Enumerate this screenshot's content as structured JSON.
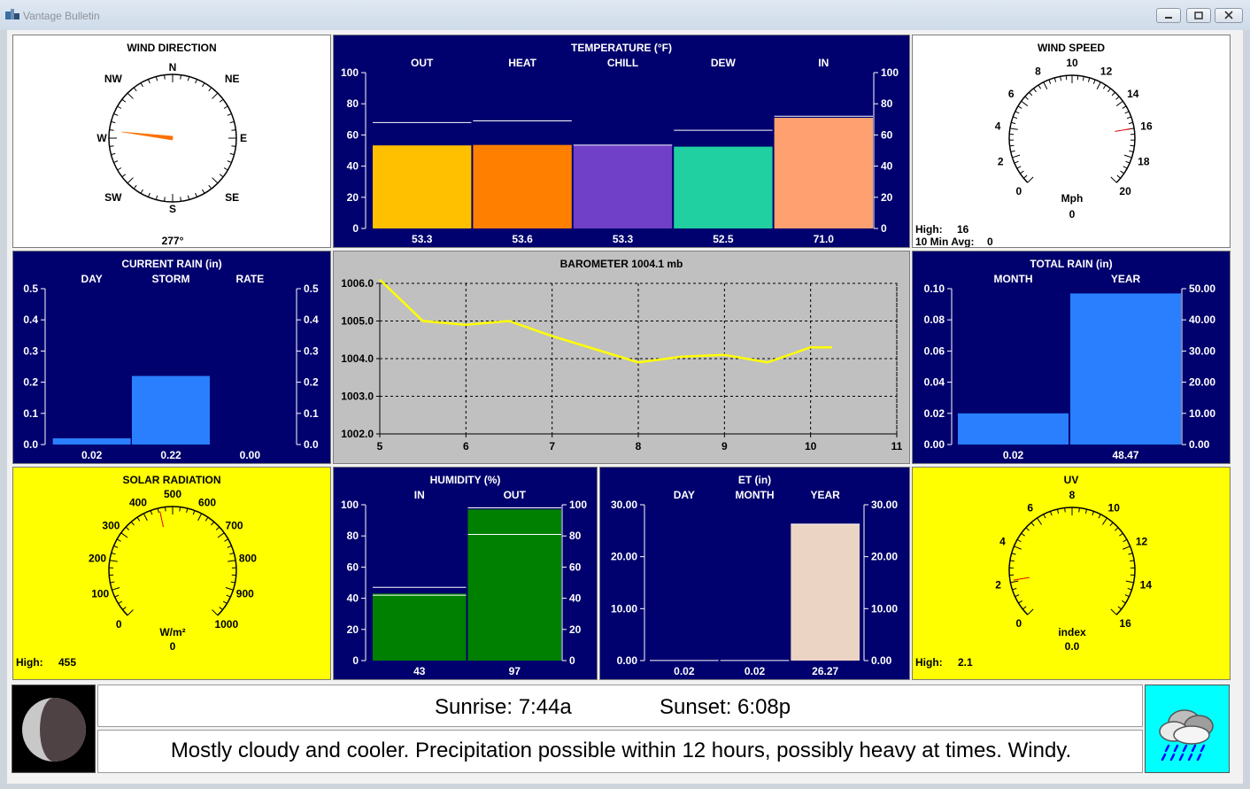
{
  "window": {
    "title": "Vantage Bulletin"
  },
  "wind_direction": {
    "title": "WIND DIRECTION",
    "compass": [
      "N",
      "NE",
      "E",
      "SE",
      "S",
      "SW",
      "W",
      "NW"
    ],
    "bearing_degrees": 277,
    "value": "277°"
  },
  "temperature": {
    "title": "TEMPERATURE  (°F)",
    "axis_ticks": [
      "100",
      "80",
      "60",
      "40",
      "20",
      "0"
    ],
    "colors": [
      "#ffc000",
      "#ff8000",
      "#7040c8",
      "#20d0a0",
      "#ffa070"
    ],
    "chart_data": {
      "type": "bar",
      "categories": [
        "OUT",
        "HEAT",
        "CHILL",
        "DEW",
        "IN"
      ],
      "values": [
        53.3,
        53.6,
        53.3,
        52.5,
        71.0
      ],
      "high_markers": [
        68,
        69,
        53.5,
        63,
        72
      ],
      "ylim": [
        0,
        100
      ]
    },
    "labels": [
      "53.3",
      "53.6",
      "53.3",
      "52.5",
      "71.0"
    ]
  },
  "wind_speed": {
    "title": "WIND SPEED",
    "ticks": [
      "0",
      "2",
      "4",
      "6",
      "8",
      "10",
      "12",
      "14",
      "16",
      "18",
      "20"
    ],
    "max": 20,
    "high": 16,
    "unit": "Mph",
    "value": "0",
    "high_label": "High:",
    "high_value": "16",
    "avg_label": "10 Min Avg:",
    "avg_value": "0"
  },
  "current_rain": {
    "title": "CURRENT RAIN  (in)",
    "axis_ticks": [
      "0.5",
      "0.4",
      "0.3",
      "0.2",
      "0.1",
      "0.0"
    ],
    "bar_color": "#2a7fff",
    "chart_data": {
      "type": "bar",
      "categories": [
        "DAY",
        "STORM",
        "RATE"
      ],
      "values": [
        0.02,
        0.22,
        0.0
      ],
      "ylim": [
        0,
        0.5
      ]
    },
    "labels": [
      "0.02",
      "0.22",
      "0.00"
    ]
  },
  "barometer": {
    "title": "BAROMETER 1004.1 mb",
    "y_ticks": [
      "1006.0",
      "1005.0",
      "1004.0",
      "1003.0",
      "1002.0"
    ],
    "x_ticks": [
      "5",
      "6",
      "7",
      "8",
      "9",
      "10",
      "11"
    ],
    "line_color": "#ffff00",
    "chart_data": {
      "type": "line",
      "x": [
        5.0,
        5.5,
        6.0,
        6.5,
        7.0,
        7.5,
        8.0,
        8.5,
        9.0,
        9.5,
        10.0,
        10.25
      ],
      "y": [
        1006.1,
        1005.0,
        1004.9,
        1005.0,
        1004.6,
        1004.25,
        1003.9,
        1004.05,
        1004.1,
        1003.9,
        1004.3,
        1004.3
      ],
      "xlim": [
        5,
        11
      ],
      "ylim": [
        1002,
        1006
      ]
    }
  },
  "total_rain": {
    "title": "TOTAL RAIN  (in)",
    "left_ticks": [
      "0.10",
      "0.08",
      "0.06",
      "0.04",
      "0.02",
      "0.00"
    ],
    "right_ticks": [
      "50.00",
      "40.00",
      "30.00",
      "20.00",
      "10.00",
      "0.00"
    ],
    "bar_color": "#2a7fff",
    "chart_data": {
      "type": "bar",
      "categories": [
        "MONTH",
        "YEAR"
      ],
      "values": [
        0.02,
        48.47
      ],
      "scales": [
        0.1,
        50.0
      ]
    },
    "labels": [
      "0.02",
      "48.47"
    ]
  },
  "solar": {
    "title": "SOLAR RADIATION",
    "ticks": [
      "0",
      "100",
      "200",
      "300",
      "400",
      "500",
      "600",
      "700",
      "800",
      "900",
      "1000"
    ],
    "max": 1000,
    "high": 455,
    "unit": "W/m²",
    "value": "0",
    "high_label": "High:",
    "high_value": "455"
  },
  "humidity": {
    "title": "HUMIDITY  (%)",
    "axis_ticks": [
      "100",
      "80",
      "60",
      "40",
      "20",
      "0"
    ],
    "bar_color": "#008000",
    "chart_data": {
      "type": "bar",
      "categories": [
        "IN",
        "OUT"
      ],
      "values": [
        43,
        97
      ],
      "high_markers": [
        47,
        98
      ],
      "low_markers": [
        42,
        81
      ],
      "ylim": [
        0,
        100
      ]
    },
    "labels": [
      "43",
      "97"
    ]
  },
  "et": {
    "title": "ET  (in)",
    "axis_ticks": [
      "30.00",
      "20.00",
      "10.00",
      "0.00"
    ],
    "bar_color": "#ecd4c4",
    "chart_data": {
      "type": "bar",
      "categories": [
        "DAY",
        "MONTH",
        "YEAR"
      ],
      "values": [
        0.02,
        0.02,
        26.27
      ],
      "ylim": [
        0,
        30
      ]
    },
    "labels": [
      "0.02",
      "0.02",
      "26.27"
    ]
  },
  "uv": {
    "title": "UV",
    "ticks": [
      "0",
      "2",
      "4",
      "6",
      "8",
      "10",
      "12",
      "14",
      "16"
    ],
    "max": 16,
    "high": 2.1,
    "unit": "index",
    "value": "0.0",
    "high_label": "High:",
    "high_value": "2.1"
  },
  "sun": {
    "sunrise": "Sunrise:  7:44a",
    "sunset": "Sunset:  6:08p"
  },
  "forecast": {
    "text": "Mostly cloudy and cooler.  Precipitation possible within 12 hours, possibly heavy at times.  Windy."
  },
  "icons": {
    "moon": "moon-phase-icon",
    "weather": "rain-cloud-icon"
  }
}
